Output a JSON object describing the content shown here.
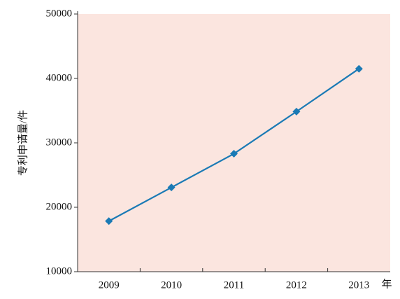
{
  "chart_data": {
    "type": "line",
    "ylabel": "专利申请量/件",
    "xlabel": "年",
    "categories": [
      "2009",
      "2010",
      "2011",
      "2012",
      "2013"
    ],
    "values": [
      17850,
      23080,
      28310,
      34850,
      41500
    ],
    "color": "#1a7ab5",
    "background": "#fbe5df",
    "ylim": [
      10000,
      50000
    ],
    "yticks": [
      10000,
      20000,
      30000,
      40000,
      50000
    ]
  }
}
